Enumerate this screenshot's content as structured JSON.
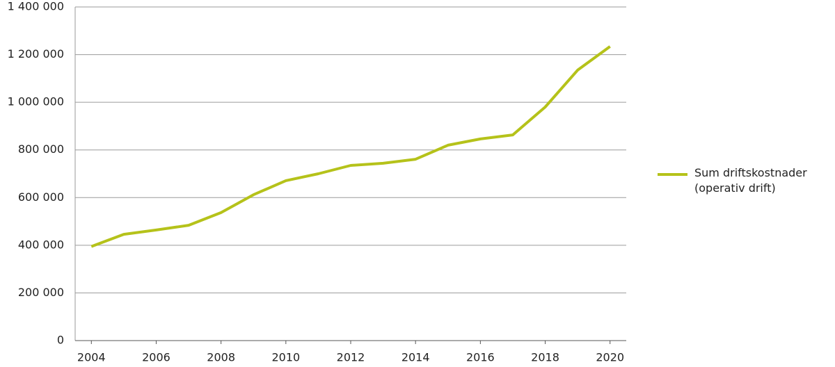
{
  "chart_data": {
    "type": "line",
    "x": [
      2004,
      2005,
      2006,
      2007,
      2008,
      2009,
      2010,
      2011,
      2012,
      2013,
      2014,
      2015,
      2016,
      2017,
      2018,
      2019,
      2020
    ],
    "series": [
      {
        "name": "Sum driftskostnader (operativ drift)",
        "color": "#b5c21a",
        "values": [
          395000,
          446000,
          464000,
          484000,
          537000,
          612000,
          671000,
          700000,
          735000,
          744000,
          761000,
          820000,
          846000,
          863000,
          980000,
          1135000,
          1234000
        ]
      }
    ],
    "xlim": [
      2003.5,
      2020.5
    ],
    "xticks": [
      2004,
      2006,
      2008,
      2010,
      2012,
      2014,
      2016,
      2018,
      2020
    ],
    "ylim": [
      0,
      1400000
    ],
    "yticks": [
      0,
      {
        "value": 200000,
        "label": "200 000"
      },
      {
        "value": 400000,
        "label": "400 000"
      },
      {
        "value": 600000,
        "label": "600 000"
      },
      {
        "value": 800000,
        "label": "800 000"
      },
      {
        "value": 1000000,
        "label": "1 000 000"
      },
      {
        "value": 1200000,
        "label": "1 200 000"
      },
      {
        "value": 1400000,
        "label": "1 400 000"
      }
    ],
    "grid": true,
    "legend": "right"
  }
}
